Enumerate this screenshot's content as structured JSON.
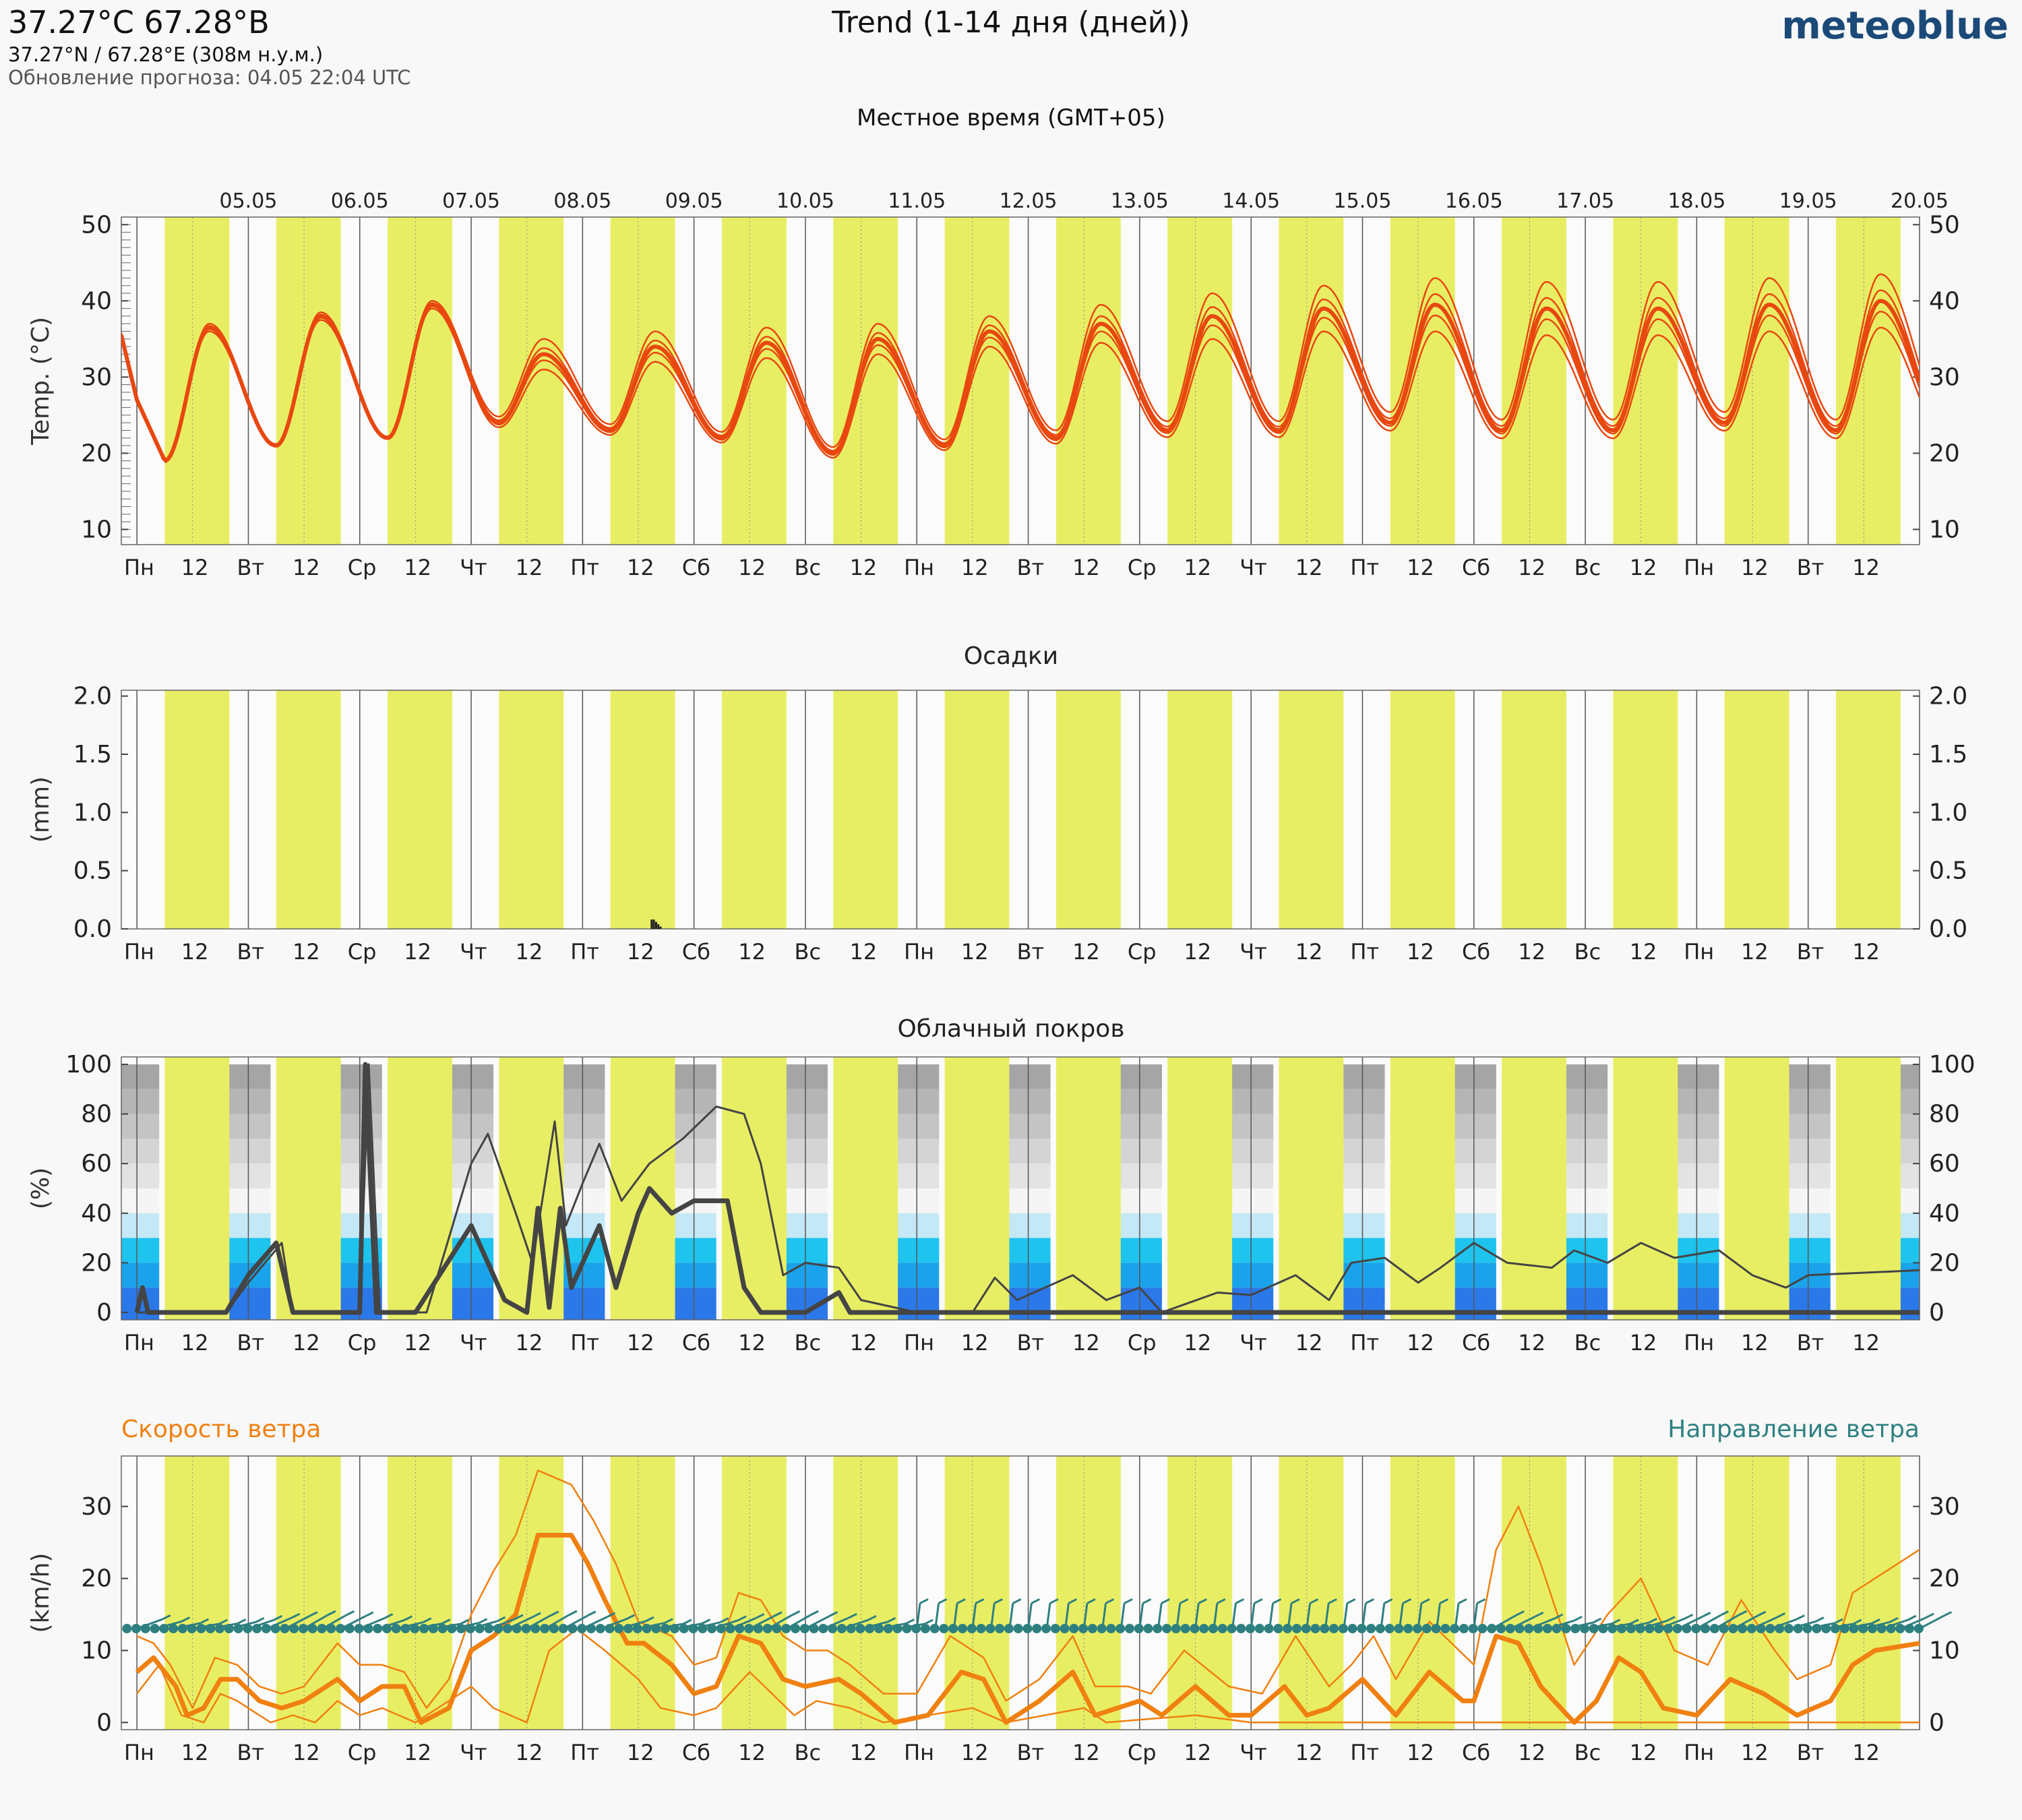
{
  "header": {
    "location_title": "37.27°C 67.28°В",
    "coords": "37.27°N / 67.28°E (308м н.у.м.)",
    "update": "Обновление прогноза: 04.05 22:04 UTC",
    "title": "Trend (1-14 дня (дней))",
    "brand": "meteoblue",
    "local_time": "Местное время (GMT+05)"
  },
  "colors": {
    "day_band": "#e8ee64",
    "temperature": "#e84810",
    "wind_speed": "#f08010",
    "wind_direction": "#2e8080",
    "cloud_line": "#444444"
  },
  "dates": [
    "05.05",
    "06.05",
    "07.05",
    "08.05",
    "09.05",
    "10.05",
    "11.05",
    "12.05",
    "13.05",
    "14.05",
    "15.05",
    "16.05",
    "17.05",
    "18.05",
    "19.05",
    "20.05"
  ],
  "day_labels": [
    "Пн",
    "Вт",
    "Ср",
    "Чт",
    "Пт",
    "Сб",
    "Вс",
    "Пн",
    "Вт",
    "Ср",
    "Чт",
    "Пт",
    "Сб",
    "Вс",
    "Пн",
    "Вт"
  ],
  "noon_label": "12",
  "chart_data": [
    {
      "type": "line",
      "panel": "temperature",
      "title": "",
      "ylabel": "Temp. (°C)",
      "ylim": [
        8,
        51
      ],
      "yticks": [
        "10",
        "20",
        "30",
        "40",
        "50"
      ],
      "x_unit": "day index (0 = 04.05 00:00 local)",
      "daily_min": [
        19,
        21,
        22,
        24,
        23,
        22,
        20,
        21,
        22,
        23,
        23,
        24,
        23,
        23,
        24,
        23
      ],
      "daily_max": [
        36.5,
        38,
        39.5,
        33,
        34,
        34.5,
        35,
        36,
        37,
        38,
        39,
        39.5,
        39,
        39,
        39.5,
        40
      ],
      "spread": [
        0.5,
        0.5,
        0.5,
        2,
        2,
        2,
        2,
        2,
        2.5,
        3,
        3,
        3.5,
        3.5,
        3.5,
        3.5,
        3.5
      ]
    },
    {
      "type": "bar",
      "panel": "precipitation",
      "title": "Осадки",
      "ylabel": "(mm)",
      "ylim": [
        0,
        2.05
      ],
      "yticks": [
        "0.0",
        "0.5",
        "1.0",
        "1.5",
        "2.0"
      ],
      "values": [
        {
          "t": 4.62,
          "v": 0.08
        },
        {
          "t": 4.64,
          "v": 0.08
        },
        {
          "t": 4.66,
          "v": 0.06
        },
        {
          "t": 4.68,
          "v": 0.04
        },
        {
          "t": 4.7,
          "v": 0.02
        }
      ]
    },
    {
      "type": "line",
      "panel": "cloud_cover",
      "title": "Облачный покров",
      "ylabel": "(%)",
      "ylim": [
        -3,
        103
      ],
      "yticks": [
        "0",
        "20",
        "40",
        "60",
        "80",
        "100"
      ],
      "mean": [
        [
          0,
          0
        ],
        [
          0.05,
          10
        ],
        [
          0.1,
          0
        ],
        [
          0.8,
          0
        ],
        [
          1.0,
          15
        ],
        [
          1.25,
          28
        ],
        [
          1.4,
          0
        ],
        [
          2.0,
          0
        ],
        [
          2.05,
          100
        ],
        [
          2.15,
          0
        ],
        [
          2.5,
          0
        ],
        [
          3.0,
          35
        ],
        [
          3.3,
          5
        ],
        [
          3.5,
          0
        ],
        [
          3.6,
          42
        ],
        [
          3.7,
          2
        ],
        [
          3.8,
          42
        ],
        [
          3.9,
          10
        ],
        [
          4.0,
          20
        ],
        [
          4.15,
          35
        ],
        [
          4.3,
          10
        ],
        [
          4.5,
          40
        ],
        [
          4.6,
          50
        ],
        [
          4.8,
          40
        ],
        [
          5.0,
          45
        ],
        [
          5.3,
          45
        ],
        [
          5.45,
          10
        ],
        [
          5.6,
          0
        ],
        [
          6.0,
          0
        ],
        [
          6.3,
          8
        ],
        [
          6.4,
          0
        ],
        [
          7.0,
          0
        ],
        [
          16,
          0
        ]
      ],
      "upper": [
        [
          0,
          0
        ],
        [
          0.8,
          0
        ],
        [
          1.0,
          12
        ],
        [
          1.3,
          28
        ],
        [
          1.4,
          0
        ],
        [
          2.0,
          0
        ],
        [
          2.08,
          100
        ],
        [
          2.18,
          0
        ],
        [
          2.6,
          0
        ],
        [
          3.0,
          60
        ],
        [
          3.15,
          72
        ],
        [
          3.4,
          40
        ],
        [
          3.55,
          20
        ],
        [
          3.75,
          77
        ],
        [
          3.85,
          35
        ],
        [
          4.0,
          52
        ],
        [
          4.15,
          68
        ],
        [
          4.35,
          45
        ],
        [
          4.6,
          60
        ],
        [
          4.75,
          65
        ],
        [
          4.9,
          70
        ],
        [
          5.2,
          83
        ],
        [
          5.45,
          80
        ],
        [
          5.6,
          60
        ],
        [
          5.8,
          15
        ],
        [
          6.0,
          20
        ],
        [
          6.3,
          18
        ],
        [
          6.5,
          5
        ],
        [
          7.0,
          0
        ],
        [
          7.5,
          0
        ],
        [
          7.7,
          14
        ],
        [
          7.9,
          5
        ],
        [
          8.4,
          15
        ],
        [
          8.7,
          5
        ],
        [
          9.0,
          10
        ],
        [
          9.2,
          0
        ],
        [
          9.7,
          8
        ],
        [
          10.0,
          7
        ],
        [
          10.4,
          15
        ],
        [
          10.7,
          5
        ],
        [
          10.9,
          20
        ],
        [
          11.2,
          22
        ],
        [
          11.5,
          12
        ],
        [
          11.7,
          18
        ],
        [
          12.0,
          28
        ],
        [
          12.3,
          20
        ],
        [
          12.7,
          18
        ],
        [
          12.9,
          25
        ],
        [
          13.2,
          20
        ],
        [
          13.5,
          28
        ],
        [
          13.8,
          22
        ],
        [
          14.2,
          25
        ],
        [
          14.5,
          15
        ],
        [
          14.8,
          10
        ],
        [
          15.0,
          15
        ],
        [
          16.0,
          17
        ]
      ]
    },
    {
      "type": "line",
      "panel": "wind",
      "title": "",
      "ylabel": "(km/h)",
      "legend_left": "Скорость ветра",
      "legend_right": "Направление ветра",
      "ylim": [
        -1,
        37
      ],
      "yticks": [
        "0",
        "10",
        "20",
        "30"
      ],
      "mean": [
        [
          0,
          7
        ],
        [
          0.15,
          9
        ],
        [
          0.35,
          5
        ],
        [
          0.45,
          1
        ],
        [
          0.6,
          2
        ],
        [
          0.75,
          6
        ],
        [
          0.9,
          6
        ],
        [
          1.1,
          3
        ],
        [
          1.3,
          2
        ],
        [
          1.5,
          3
        ],
        [
          1.8,
          6
        ],
        [
          2.0,
          3
        ],
        [
          2.2,
          5
        ],
        [
          2.4,
          5
        ],
        [
          2.55,
          0
        ],
        [
          2.8,
          2
        ],
        [
          3.0,
          10
        ],
        [
          3.2,
          12
        ],
        [
          3.4,
          15
        ],
        [
          3.6,
          26
        ],
        [
          3.9,
          26
        ],
        [
          4.05,
          22
        ],
        [
          4.2,
          17
        ],
        [
          4.4,
          11
        ],
        [
          4.55,
          11
        ],
        [
          4.8,
          8
        ],
        [
          5.0,
          4
        ],
        [
          5.2,
          5
        ],
        [
          5.4,
          12
        ],
        [
          5.6,
          11
        ],
        [
          5.8,
          6
        ],
        [
          6.0,
          5
        ],
        [
          6.3,
          6
        ],
        [
          6.5,
          4
        ],
        [
          6.8,
          0
        ],
        [
          7.1,
          1
        ],
        [
          7.4,
          7
        ],
        [
          7.6,
          6
        ],
        [
          7.8,
          0
        ],
        [
          8.1,
          3
        ],
        [
          8.4,
          7
        ],
        [
          8.6,
          1
        ],
        [
          8.8,
          2
        ],
        [
          9.0,
          3
        ],
        [
          9.2,
          1
        ],
        [
          9.5,
          5
        ],
        [
          9.8,
          1
        ],
        [
          10.0,
          1
        ],
        [
          10.3,
          5
        ],
        [
          10.5,
          1
        ],
        [
          10.7,
          2
        ],
        [
          11.0,
          6
        ],
        [
          11.3,
          1
        ],
        [
          11.6,
          7
        ],
        [
          11.9,
          3
        ],
        [
          12.0,
          3
        ],
        [
          12.2,
          12
        ],
        [
          12.4,
          11
        ],
        [
          12.6,
          5
        ],
        [
          12.9,
          0
        ],
        [
          13.1,
          3
        ],
        [
          13.3,
          9
        ],
        [
          13.5,
          7
        ],
        [
          13.7,
          2
        ],
        [
          14.0,
          1
        ],
        [
          14.3,
          6
        ],
        [
          14.6,
          4
        ],
        [
          14.9,
          1
        ],
        [
          15.2,
          3
        ],
        [
          15.4,
          8
        ],
        [
          15.6,
          10
        ],
        [
          16.0,
          11
        ]
      ],
      "upper": [
        [
          0,
          12
        ],
        [
          0.15,
          11
        ],
        [
          0.3,
          8
        ],
        [
          0.5,
          2
        ],
        [
          0.7,
          9
        ],
        [
          0.9,
          8
        ],
        [
          1.1,
          5
        ],
        [
          1.3,
          4
        ],
        [
          1.5,
          5
        ],
        [
          1.8,
          11
        ],
        [
          2.0,
          8
        ],
        [
          2.2,
          8
        ],
        [
          2.4,
          7
        ],
        [
          2.6,
          2
        ],
        [
          2.8,
          6
        ],
        [
          3.0,
          15
        ],
        [
          3.2,
          21
        ],
        [
          3.4,
          26
        ],
        [
          3.6,
          35
        ],
        [
          3.9,
          33
        ],
        [
          4.1,
          28
        ],
        [
          4.3,
          22
        ],
        [
          4.5,
          14
        ],
        [
          4.8,
          12
        ],
        [
          5.0,
          8
        ],
        [
          5.2,
          9
        ],
        [
          5.4,
          18
        ],
        [
          5.6,
          17
        ],
        [
          5.8,
          12
        ],
        [
          6.0,
          10
        ],
        [
          6.2,
          10
        ],
        [
          6.4,
          8
        ],
        [
          6.7,
          4
        ],
        [
          7.0,
          4
        ],
        [
          7.3,
          12
        ],
        [
          7.6,
          9
        ],
        [
          7.8,
          3
        ],
        [
          8.1,
          6
        ],
        [
          8.4,
          12
        ],
        [
          8.6,
          5
        ],
        [
          8.9,
          5
        ],
        [
          9.1,
          4
        ],
        [
          9.4,
          10
        ],
        [
          9.8,
          5
        ],
        [
          10.1,
          4
        ],
        [
          10.4,
          12
        ],
        [
          10.7,
          5
        ],
        [
          10.9,
          8
        ],
        [
          11.1,
          12
        ],
        [
          11.3,
          6
        ],
        [
          11.6,
          14
        ],
        [
          12.0,
          8
        ],
        [
          12.2,
          24
        ],
        [
          12.4,
          30
        ],
        [
          12.6,
          22
        ],
        [
          12.9,
          8
        ],
        [
          13.2,
          15
        ],
        [
          13.5,
          20
        ],
        [
          13.8,
          10
        ],
        [
          14.1,
          8
        ],
        [
          14.4,
          17
        ],
        [
          14.7,
          10
        ],
        [
          14.9,
          6
        ],
        [
          15.2,
          8
        ],
        [
          15.4,
          18
        ],
        [
          15.6,
          20
        ],
        [
          16.0,
          24
        ]
      ],
      "lower": [
        [
          0,
          4
        ],
        [
          0.2,
          8
        ],
        [
          0.4,
          1
        ],
        [
          0.6,
          0
        ],
        [
          0.75,
          4
        ],
        [
          0.9,
          3
        ],
        [
          1.2,
          0
        ],
        [
          1.4,
          1
        ],
        [
          1.6,
          0
        ],
        [
          1.8,
          3
        ],
        [
          2.0,
          1
        ],
        [
          2.2,
          2
        ],
        [
          2.5,
          0
        ],
        [
          3.0,
          5
        ],
        [
          3.2,
          2
        ],
        [
          3.5,
          0
        ],
        [
          3.7,
          10
        ],
        [
          3.95,
          13
        ],
        [
          4.2,
          10
        ],
        [
          4.5,
          6
        ],
        [
          4.7,
          2
        ],
        [
          5.0,
          1
        ],
        [
          5.2,
          2
        ],
        [
          5.5,
          7
        ],
        [
          5.7,
          4
        ],
        [
          5.9,
          1
        ],
        [
          6.1,
          3
        ],
        [
          6.4,
          2
        ],
        [
          6.7,
          0
        ],
        [
          7.5,
          2
        ],
        [
          7.8,
          0
        ],
        [
          8.5,
          2
        ],
        [
          8.7,
          0
        ],
        [
          9.5,
          1
        ],
        [
          10.0,
          0
        ],
        [
          16.0,
          0
        ]
      ],
      "dir_low_days": [
        0,
        1,
        2,
        3,
        4,
        5,
        6,
        12,
        13,
        14,
        15
      ],
      "dir_high_days": [
        7,
        8,
        9,
        10,
        11
      ]
    }
  ]
}
